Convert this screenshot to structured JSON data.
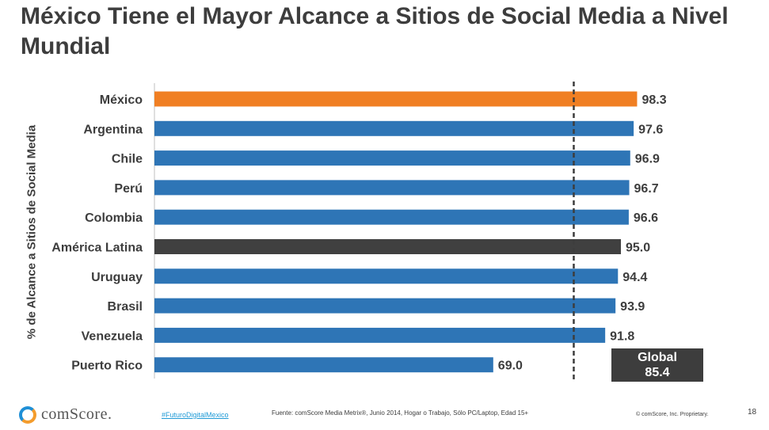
{
  "title": "México Tiene el Mayor Alcance a Sitios de Social Media a Nivel Mundial",
  "chart_data": {
    "type": "bar",
    "orientation": "horizontal",
    "ylabel": "% de Alcance a Sitios de Social Media",
    "categories": [
      "México",
      "Argentina",
      "Chile",
      "Perú",
      "Colombia",
      "América Latina",
      "Uruguay",
      "Brasil",
      "Venezuela",
      "Puerto Rico"
    ],
    "values": [
      98.3,
      97.6,
      96.9,
      96.7,
      96.6,
      95.0,
      94.4,
      93.9,
      91.8,
      69.0
    ],
    "value_labels": [
      "98.3",
      "97.6",
      "96.9",
      "96.7",
      "96.6",
      "95.0",
      "94.4",
      "93.9",
      "91.8",
      "69.0"
    ],
    "bar_colors": [
      "#f07f23",
      "#2e75b6",
      "#2e75b6",
      "#2e75b6",
      "#2e75b6",
      "#404040",
      "#2e75b6",
      "#2e75b6",
      "#2e75b6",
      "#2e75b6"
    ],
    "reference_line": {
      "value": 85.4,
      "style": "dashed",
      "label_title": "Global",
      "label_value": "85.4"
    },
    "xlim": [
      0,
      100
    ],
    "grid": false
  },
  "footer": {
    "logo_text": "comScore.",
    "hashtag": "#FuturoDigitalMexico",
    "source": "Fuente: comScore Media Metrix®, Junio 2014, Hogar o Trabajo, Sólo PC/Laptop, Edad 15+",
    "copyright": "© comScore, Inc. Proprietary.",
    "page_number": "18"
  },
  "colors": {
    "highlight": "#f07f23",
    "default_bar": "#2e75b6",
    "region_bar": "#404040",
    "text": "#3d3d3d"
  }
}
